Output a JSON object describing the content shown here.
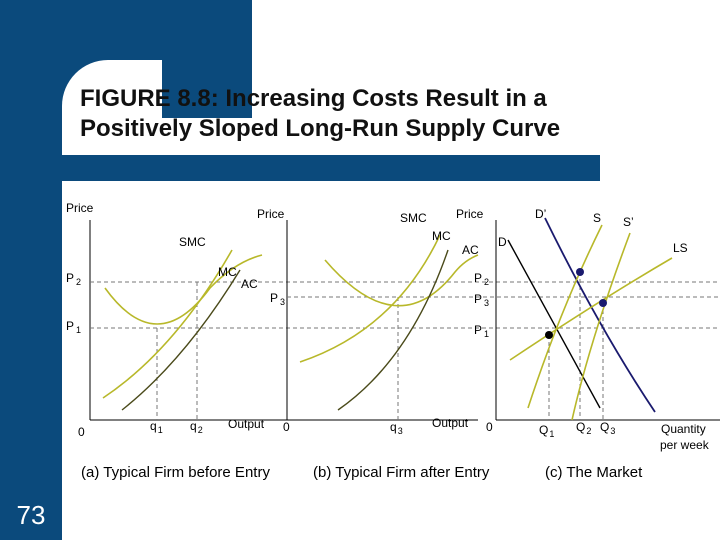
{
  "slide": {
    "title_line1": "FIGURE 8.8: Increasing Costs Result in a",
    "title_line2": "Positively Sloped Long-Run Supply Curve",
    "page_number": "73"
  },
  "panel_a": {
    "price_label": "Price",
    "smc": "SMC",
    "mc": "MC",
    "ac": "AC",
    "p2": "P",
    "p2_sub": "2",
    "p1": "P",
    "p1_sub": "1",
    "origin": "0",
    "q1": "q",
    "q1_sub": "1",
    "q2": "q",
    "q2_sub": "2",
    "output": "Output",
    "caption": "(a) Typical Firm before Entry"
  },
  "panel_b": {
    "price_label": "Price",
    "smc": "SMC",
    "mc": "MC",
    "ac": "AC",
    "p3": "P",
    "p3_sub": "3",
    "origin": "0",
    "q3": "q",
    "q3_sub": "3",
    "output": "Output",
    "caption": "(b) Typical Firm after Entry"
  },
  "panel_c": {
    "price_label": "Price",
    "d_prime": "D’",
    "d": "D",
    "s": "S",
    "s_prime": "S’",
    "ls": "LS",
    "p2": "P",
    "p2_sub": "2",
    "p3": "P",
    "p3_sub": "3",
    "p1": "P",
    "p1_sub": "1",
    "origin": "0",
    "Q1": "Q",
    "Q1_sub": "1",
    "Q2": "Q",
    "Q2_sub": "2",
    "Q3": "Q",
    "Q3_sub": "3",
    "quantity_line1": "Quantity",
    "quantity_line2": "per week",
    "caption": "(c) The Market"
  },
  "colors": {
    "slide_blue": "#0b4a7c",
    "cost_curve_olive": "#b8b82a",
    "mc_curve_dark": "#4a4a1a",
    "demand_navy": "#1a1a6e",
    "supply_black": "#000000"
  }
}
